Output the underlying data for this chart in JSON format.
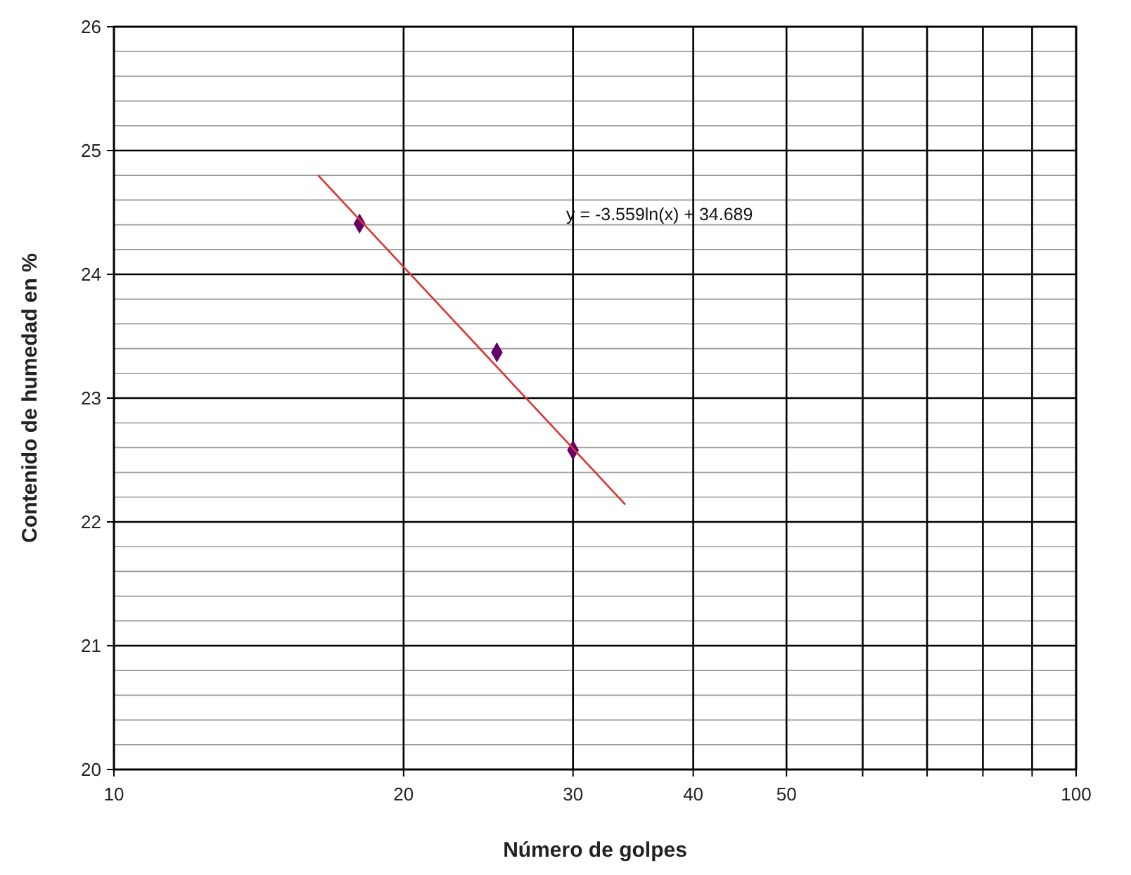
{
  "chart_data": {
    "type": "scatter",
    "xlabel": "Número de golpes",
    "ylabel": "Contenido de humedad en %",
    "x": [
      18,
      25,
      30
    ],
    "series": [
      {
        "color": "#660066",
        "values": [
          24.41,
          23.37,
          22.58
        ],
        "marker": "diamond"
      },
      {
        "type": "line",
        "color": "#e03030",
        "x": [
          16.3,
          34
        ],
        "values": [
          24.8,
          22.14
        ],
        "marker": "none"
      }
    ],
    "log": "x",
    "xlim": [
      10,
      100
    ],
    "ylim": [
      20,
      26
    ],
    "xticks": [
      10,
      20,
      30,
      40,
      50,
      {
        "value": 60,
        "label": null
      },
      {
        "value": 70,
        "label": null
      },
      {
        "value": 80,
        "label": null
      },
      {
        "value": 90,
        "label": null
      },
      100
    ],
    "yticks": [
      20,
      {
        "value": 20.2,
        "label": null
      },
      {
        "value": 20.4,
        "label": null
      },
      {
        "value": 20.6,
        "label": null
      },
      {
        "value": 20.8,
        "label": null
      },
      21,
      {
        "value": 21.2,
        "label": null
      },
      {
        "value": 21.4,
        "label": null
      },
      {
        "value": 21.6,
        "label": null
      },
      {
        "value": 21.8,
        "label": null
      },
      22,
      {
        "value": 22.2,
        "label": null
      },
      {
        "value": 22.4,
        "label": null
      },
      {
        "value": 22.6,
        "label": null
      },
      {
        "value": 22.8,
        "label": null
      },
      23,
      {
        "value": 23.2,
        "label": null
      },
      {
        "value": 23.4,
        "label": null
      },
      {
        "value": 23.6,
        "label": null
      },
      {
        "value": 23.8,
        "label": null
      },
      24,
      {
        "value": 24.2,
        "label": null
      },
      {
        "value": 24.4,
        "label": null
      },
      {
        "value": 24.6,
        "label": null
      },
      {
        "value": 24.8,
        "label": null
      },
      25,
      {
        "value": 25.2,
        "label": null
      },
      {
        "value": 25.4,
        "label": null
      },
      {
        "value": 25.6,
        "label": null
      },
      {
        "value": 25.8,
        "label": null
      },
      26
    ],
    "grid": true,
    "annotations": [
      "y = -3.559ln(x) + 34.689"
    ]
  }
}
